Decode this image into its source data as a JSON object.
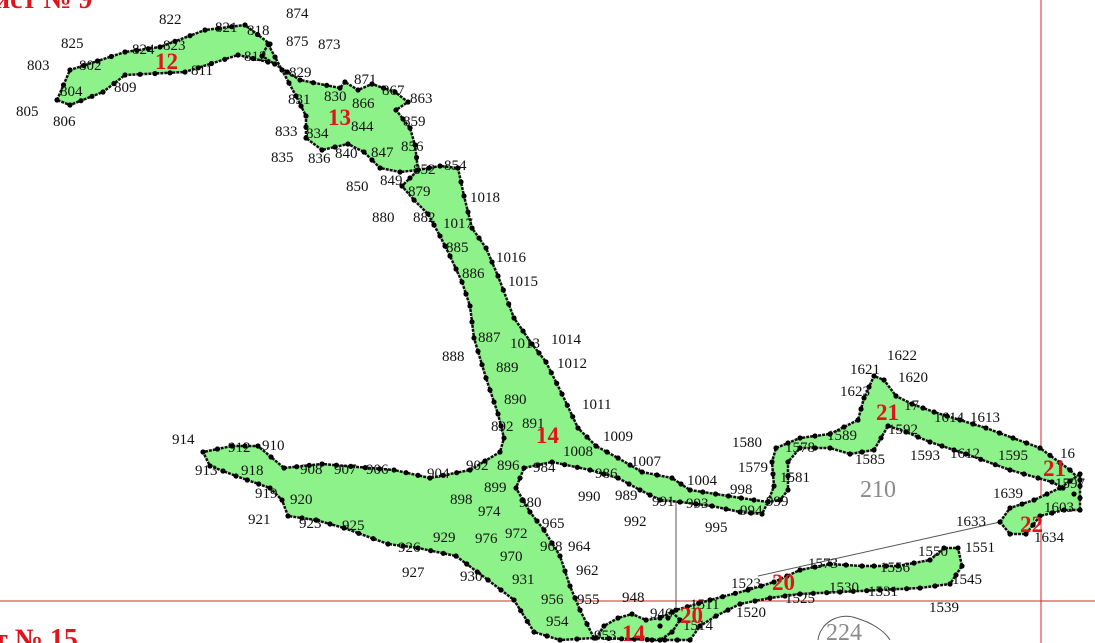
{
  "sheets": {
    "top": "ист № 9",
    "bottom": "т № 15"
  },
  "blocks": {
    "b210": "210",
    "b224": "224"
  },
  "area_labels": {
    "a12": "12",
    "a13": "13",
    "a14_main": "14",
    "a14_bottom": "14",
    "a20_left": "20",
    "a20_right": "20",
    "a21_top": "21",
    "a21_right": "21",
    "a22": "22"
  },
  "points": {
    "p803": "803",
    "p825": "825",
    "p802": "802",
    "p804": "804",
    "p805": "805",
    "p806": "806",
    "p809": "809",
    "p822": "822",
    "p824": "824",
    "p823": "823",
    "p821": "821",
    "p818": "818",
    "p811": "811",
    "p812": "812",
    "p874": "874",
    "p875": "875",
    "p873": "873",
    "p829": "829",
    "p871": "871",
    "p831": "831",
    "p830": "830",
    "p866": "866",
    "p867": "867",
    "p863": "863",
    "p833": "833",
    "p834": "834",
    "p844": "844",
    "p859": "859",
    "p835": "835",
    "p836": "836",
    "p840": "840",
    "p847": "847",
    "p856": "856",
    "p850": "850",
    "p849": "849",
    "p852": "852",
    "p854": "854",
    "p879": "879",
    "p1018": "1018",
    "p880": "880",
    "p882": "882",
    "p1017": "1017",
    "p885": "885",
    "p1016": "1016",
    "p886": "886",
    "p1015": "1015",
    "p887": "887",
    "p1013": "1013",
    "p1014": "1014",
    "p888": "888",
    "p889": "889",
    "p1012": "1012",
    "p890": "890",
    "p1011": "1011",
    "p892": "892",
    "p891": "891",
    "p1009": "1009",
    "p914": "914",
    "p912": "912",
    "p910": "910",
    "p913": "913",
    "p918": "918",
    "p908": "908",
    "p907": "907",
    "p906": "906",
    "p904": "904",
    "p902": "902",
    "p896": "896",
    "p984": "984",
    "p1008": "1008",
    "p1007": "1007",
    "p986": "986",
    "p919": "919",
    "p920": "920",
    "p898": "898",
    "p899": "899",
    "p980": "980",
    "p990": "990",
    "p989": "989",
    "p991": "991",
    "p993": "993",
    "p1004": "1004",
    "p998": "998",
    "p921": "921",
    "p923": "923",
    "p925": "925",
    "p974": "974",
    "p992": "992",
    "p995": "995",
    "p994": "994",
    "p999": "999",
    "p972": "972",
    "p976": "976",
    "p965": "965",
    "p926": "926",
    "p929": "929",
    "p968": "968",
    "p964": "964",
    "p970": "970",
    "p927": "927",
    "p930": "930",
    "p962": "962",
    "p931": "931",
    "p956": "956",
    "p955": "955",
    "p948": "948",
    "p946": "946",
    "p954": "954",
    "p953": "953",
    "p1511": "1511",
    "p1514": "1514",
    "p1520": "1520",
    "p1523": "1523",
    "p1525": "1525",
    "p1573": "1573",
    "p1530": "1530",
    "p1531": "1531",
    "p1556": "1556",
    "p1550": "1550",
    "p1551": "1551",
    "p1545": "1545",
    "p1539": "1539",
    "p1580": "1580",
    "p1578": "1578",
    "p1579": "1579",
    "p1581": "1581",
    "p1589": "1589",
    "p1585": "1585",
    "p1621": "1621",
    "p1622": "1622",
    "p1620": "1620",
    "p1623": "1623",
    "p1617": "17",
    "p1614": "1614",
    "p1613": "1613",
    "p1592": "1592",
    "p1593": "1593",
    "p1612": "1612",
    "p1595": "1595",
    "p16": "16",
    "p1597": "1597",
    "p1639": "1639",
    "p1603": "1603",
    "p1633": "1633",
    "p1634": "1634"
  },
  "colors": {
    "parcel_fill": "#8ef28a",
    "boundary": "#111111",
    "red_text": "#e0141a",
    "sheet_line": "#d9242a"
  }
}
